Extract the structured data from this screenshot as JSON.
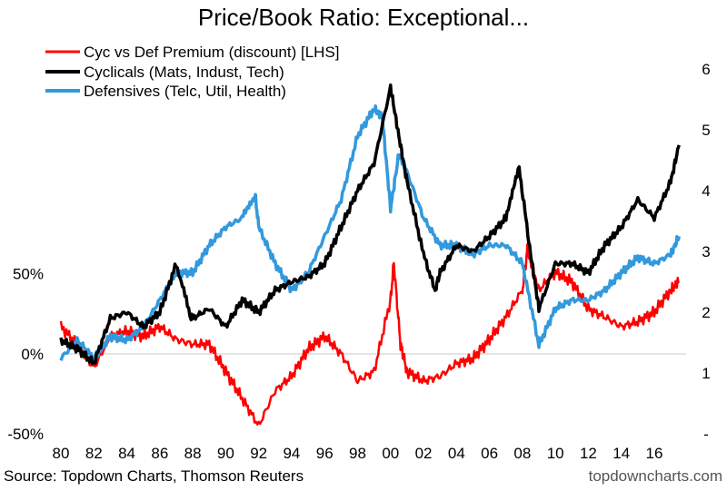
{
  "chart_data": {
    "type": "line",
    "title": "Price/Book Ratio: Exceptional...",
    "source": "Source: Topdown Charts, Thomson Reuters",
    "watermark": "topdowncharts.com",
    "x_ticks": [
      "80",
      "82",
      "84",
      "86",
      "88",
      "90",
      "92",
      "94",
      "96",
      "98",
      "00",
      "02",
      "04",
      "06",
      "08",
      "10",
      "12",
      "14",
      "16"
    ],
    "x_tick_years": [
      1980,
      1982,
      1984,
      1986,
      1988,
      1990,
      1992,
      1994,
      1996,
      1998,
      2000,
      2002,
      2004,
      2006,
      2008,
      2010,
      2012,
      2014,
      2016
    ],
    "xlim": [
      1980,
      2017.6
    ],
    "left_axis": {
      "ticks": [
        "50%",
        "0%",
        "-50%"
      ],
      "tick_values": [
        50,
        0,
        -50
      ],
      "ylim": [
        -50,
        178
      ]
    },
    "right_axis": {
      "ticks": [
        "6",
        "5",
        "4",
        "3",
        "2",
        "1",
        "-"
      ],
      "tick_values": [
        6,
        5,
        4,
        3,
        2,
        1,
        0
      ],
      "ylim": [
        0,
        6
      ]
    },
    "series": [
      {
        "name": "Cyc vs Def Premium (discount) [LHS]",
        "axis": "left",
        "color": "#ff0000",
        "x": [
          1980,
          1981,
          1982,
          1983,
          1984,
          1985,
          1986,
          1987,
          1988,
          1989,
          1990,
          1991,
          1992,
          1993,
          1994,
          1995,
          1996,
          1997,
          1998,
          1999,
          2000,
          2000.2,
          2000.6,
          2001,
          2002,
          2003,
          2004,
          2005,
          2006,
          2007,
          2008,
          2008.3,
          2009,
          2010,
          2011,
          2012,
          2013,
          2014,
          2015,
          2016,
          2017,
          2017.5
        ],
        "values": [
          17,
          6,
          -9,
          11,
          14,
          11,
          17,
          9,
          6,
          6,
          -11,
          -28,
          -45,
          -23,
          -14,
          3,
          11,
          0,
          -17,
          -11,
          34,
          57,
          6,
          -11,
          -17,
          -14,
          -6,
          -3,
          9,
          23,
          40,
          65,
          40,
          51,
          45,
          28,
          23,
          17,
          20,
          26,
          40,
          45
        ]
      },
      {
        "name": "Cyclicals (Mats, Indust, Tech)",
        "axis": "right",
        "color": "#000000",
        "x": [
          1980,
          1981,
          1982,
          1983,
          1984,
          1985,
          1986,
          1987,
          1987.9,
          1988,
          1989,
          1990,
          1991,
          1992,
          1993,
          1994,
          1995,
          1996,
          1997,
          1998,
          1999,
          2000,
          2000.5,
          2001,
          2002,
          2002.7,
          2003,
          2004,
          2005,
          2006,
          2007,
          2007.8,
          2008.5,
          2009,
          2010,
          2011,
          2012,
          2013,
          2014,
          2015,
          2016,
          2017,
          2017.5
        ],
        "values": [
          1.54,
          1.4,
          1.16,
          1.9,
          2.0,
          1.76,
          2.0,
          2.8,
          1.9,
          1.9,
          2.06,
          1.76,
          2.2,
          2.0,
          2.36,
          2.5,
          2.58,
          2.8,
          3.4,
          4.0,
          4.45,
          5.7,
          4.9,
          4.15,
          2.95,
          2.36,
          2.65,
          3.1,
          3.0,
          3.25,
          3.55,
          4.37,
          2.95,
          2.06,
          2.8,
          2.8,
          2.65,
          3.1,
          3.4,
          3.85,
          3.55,
          4.15,
          4.75
        ]
      },
      {
        "name": "Defensives (Telc, Util, Health)",
        "axis": "right",
        "color": "#3399dd",
        "x": [
          1980,
          1981,
          1982,
          1983,
          1984,
          1985,
          1986,
          1987,
          1988,
          1989,
          1990,
          1991,
          1991.8,
          1992,
          1993,
          1994,
          1995,
          1996,
          1997,
          1998,
          1999,
          1999.5,
          2000,
          2000.5,
          2001,
          2002,
          2003,
          2004,
          2005,
          2006,
          2007,
          2008,
          2009,
          2010,
          2011,
          2012,
          2013,
          2014,
          2015,
          2016,
          2017,
          2017.5
        ],
        "values": [
          1.24,
          1.54,
          1.24,
          1.6,
          1.54,
          1.76,
          2.2,
          2.65,
          2.65,
          3.1,
          3.4,
          3.55,
          3.9,
          3.4,
          2.8,
          2.36,
          2.65,
          3.25,
          3.85,
          4.9,
          5.35,
          5.2,
          3.7,
          4.6,
          4.3,
          3.55,
          3.1,
          3.1,
          2.95,
          3.1,
          3.1,
          2.8,
          1.46,
          2.06,
          2.2,
          2.2,
          2.36,
          2.65,
          2.9,
          2.8,
          2.95,
          3.25
        ]
      }
    ]
  }
}
